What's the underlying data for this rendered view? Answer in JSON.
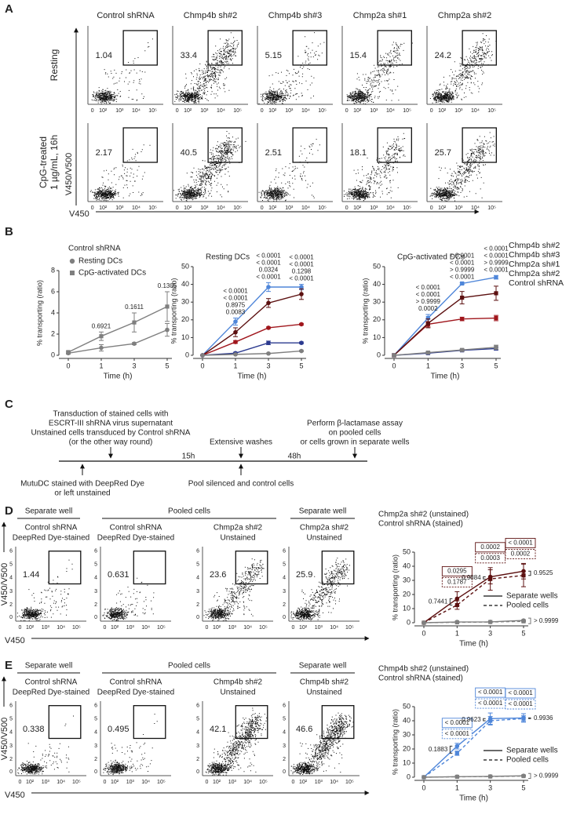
{
  "panel_labels": [
    "A",
    "B",
    "C",
    "D",
    "E"
  ],
  "flow_a": {
    "columns": [
      {
        "name": "Control shRNA",
        "color": "#555555"
      },
      {
        "name": "Chmp4b sh#2",
        "color": "#4f86d9"
      },
      {
        "name": "Chmp4b sh#3",
        "color": "#2b3a8f"
      },
      {
        "name": "Chmp2a sh#1",
        "color": "#a0161c"
      },
      {
        "name": "Chmp2a sh#2",
        "color": "#5c1010"
      }
    ],
    "rows": [
      {
        "label": [
          "Resting"
        ],
        "gates": [
          1.04,
          33.4,
          5.15,
          15.4,
          24.2
        ]
      },
      {
        "label": [
          "CpG-treated",
          "1 µg/mL, 16h"
        ],
        "gates": [
          2.17,
          40.5,
          2.51,
          18.1,
          25.7
        ]
      }
    ],
    "y_label": "V450/V500",
    "x_label": "V450",
    "x_ticks": [
      "0",
      "10²",
      "10³",
      "10⁴",
      "10⁵"
    ]
  },
  "chart_data": [
    {
      "type": "line",
      "legend_title": "Control shRNA",
      "categories": [
        "0",
        "1",
        "3",
        "5"
      ],
      "xlabel": "Time (h)",
      "ylabel": "% transporting (ratio)",
      "ylim": [
        0,
        8
      ],
      "yticks": [
        0,
        2,
        4,
        6,
        8
      ],
      "series": [
        {
          "name": "Resting DCs",
          "color": "#7f7f7f",
          "marker": "circle",
          "values": [
            0.2,
            0.7,
            1.1,
            2.4
          ],
          "errors": [
            0.1,
            0.3,
            0.1,
            0.6
          ]
        },
        {
          "name": "CpG-activated DCs",
          "color": "#7f7f7f",
          "marker": "square",
          "values": [
            0.3,
            1.8,
            3.1,
            4.6
          ],
          "errors": [
            0.1,
            0.4,
            0.9,
            1.4
          ]
        }
      ],
      "p_values": [
        null,
        "0.6921",
        "0.1611",
        "0.1305"
      ],
      "p_color": "#808080"
    },
    {
      "type": "line",
      "title": "Resting DCs",
      "categories": [
        "0",
        "1",
        "3",
        "5"
      ],
      "xlabel": "Time (h)",
      "ylabel": "% transporting (ratio)",
      "ylim": [
        0,
        50
      ],
      "yticks": [
        0,
        10,
        20,
        30,
        40,
        50
      ],
      "series": [
        {
          "color": "#4f86d9",
          "marker": "circle",
          "values": [
            0,
            19,
            38.5,
            38.5
          ],
          "errors": [
            0,
            2,
            2.5,
            1.5
          ]
        },
        {
          "color": "#5c1010",
          "marker": "circle",
          "values": [
            0,
            13,
            29.5,
            34.5
          ],
          "errors": [
            0,
            2.5,
            2.5,
            3
          ]
        },
        {
          "color": "#a0161c",
          "marker": "circle",
          "values": [
            0,
            7.5,
            15.5,
            17.5
          ],
          "errors": [
            0,
            0.8,
            0.5,
            0.5
          ]
        },
        {
          "color": "#2b3a8f",
          "marker": "circle",
          "values": [
            0,
            1.2,
            7,
            7
          ],
          "errors": [
            0,
            0.5,
            1,
            0.5
          ]
        },
        {
          "color": "#7f7f7f",
          "marker": "circle",
          "values": [
            0,
            0.5,
            1,
            2.4
          ],
          "errors": [
            0,
            0.2,
            0.2,
            0.4
          ]
        }
      ],
      "p_values": [
        null,
        [
          {
            "text": "< 0.0001",
            "color": "#4f86d9"
          },
          {
            "text": "< 0.0001",
            "color": "#5c1010"
          },
          {
            "text": "0.8975",
            "color": "#2b3a8f"
          },
          {
            "text": "0.0083",
            "color": "#a0161c"
          }
        ],
        [
          {
            "text": "< 0.0001",
            "color": "#4f86d9"
          },
          {
            "text": "< 0.0001",
            "color": "#5c1010"
          },
          {
            "text": "0.0324",
            "color": "#2b3a8f"
          },
          {
            "text": "< 0.0001",
            "color": "#a0161c"
          }
        ],
        [
          {
            "text": "< 0.0001",
            "color": "#4f86d9"
          },
          {
            "text": "< 0.0001",
            "color": "#5c1010"
          },
          {
            "text": "0.1298",
            "color": "#2b3a8f"
          },
          {
            "text": "< 0.0001",
            "color": "#a0161c"
          }
        ]
      ]
    },
    {
      "type": "line",
      "title": "CpG-activated DCs",
      "categories": [
        "0",
        "1",
        "3",
        "5"
      ],
      "xlabel": "Time (h)",
      "ylabel": "% transporting (ratio)",
      "ylim": [
        0,
        50
      ],
      "yticks": [
        0,
        10,
        20,
        30,
        40,
        50
      ],
      "series": [
        {
          "name": "Chmp4b sh#2",
          "color": "#4f86d9",
          "marker": "square",
          "values": [
            0,
            21,
            40.5,
            44
          ],
          "errors": [
            0,
            2,
            0.5,
            1
          ]
        },
        {
          "name": "Chmp4b sh#3",
          "color": "#2b3a8f",
          "marker": "square",
          "values": [
            0,
            1.2,
            2.8,
            3.8
          ],
          "errors": [
            0,
            0.4,
            0.5,
            0.8
          ]
        },
        {
          "name": "Chmp2a sh#1",
          "color": "#a0161c",
          "marker": "square",
          "values": [
            0,
            17.5,
            20.5,
            21
          ],
          "errors": [
            0,
            1.5,
            1,
            1.5
          ]
        },
        {
          "name": "Chmp2a sh#2",
          "color": "#5c1010",
          "marker": "square",
          "values": [
            0,
            18,
            32.5,
            35
          ],
          "errors": [
            0,
            2.5,
            3.5,
            4
          ]
        },
        {
          "name": "Control shRNA",
          "color": "#7f7f7f",
          "marker": "square",
          "values": [
            0,
            1.5,
            3,
            4.5
          ],
          "errors": [
            0,
            0.5,
            0.5,
            1.2
          ]
        }
      ],
      "p_values": [
        null,
        [
          {
            "text": "< 0.0001",
            "color": "#4f86d9"
          },
          {
            "text": "< 0.0001",
            "color": "#5c1010"
          },
          {
            "text": "> 0.9999",
            "color": "#2b3a8f"
          },
          {
            "text": "0.0002",
            "color": "#a0161c"
          }
        ],
        [
          {
            "text": "< 0.0001",
            "color": "#4f86d9"
          },
          {
            "text": "< 0.0001",
            "color": "#5c1010"
          },
          {
            "text": "> 0.9999",
            "color": "#2b3a8f"
          },
          {
            "text": "< 0.0001",
            "color": "#a0161c"
          }
        ],
        [
          {
            "text": "< 0.0001",
            "color": "#4f86d9"
          },
          {
            "text": "< 0.0001",
            "color": "#5c1010"
          },
          {
            "text": "> 0.9999",
            "color": "#2b3a8f"
          },
          {
            "text": "< 0.0001",
            "color": "#a0161c"
          }
        ]
      ]
    },
    {
      "type": "line",
      "categories": [
        "0",
        "1",
        "3",
        "5"
      ],
      "xlabel": "Time (h)",
      "ylabel": "% transporting (ratio)",
      "ylim": [
        0,
        50
      ],
      "yticks": [
        0,
        10,
        20,
        30,
        40,
        50
      ],
      "groups": [
        {
          "name": "Chmp2a sh#2 (unstained)",
          "color": "#5c1010"
        },
        {
          "name": "Control shRNA (stained)",
          "color": "#7f7f7f"
        }
      ],
      "line_styles": [
        {
          "name": "Separate wells",
          "dash": false
        },
        {
          "name": "Pooled cells",
          "dash": true
        }
      ],
      "series": [
        {
          "color": "#5c1010",
          "marker": "circle",
          "dash": false,
          "values": [
            0,
            17,
            32.5,
            36.5
          ],
          "errors": [
            0,
            5,
            5,
            5.5
          ]
        },
        {
          "color": "#5c1010",
          "marker": "square",
          "dash": true,
          "values": [
            0,
            12.5,
            31,
            33.5
          ],
          "errors": [
            0,
            3,
            8,
            8
          ]
        },
        {
          "color": "#7f7f7f",
          "marker": "circle",
          "dash": false,
          "values": [
            0,
            0.5,
            0.6,
            1.6
          ],
          "errors": [
            0,
            0.2,
            0.3,
            0.5
          ]
        },
        {
          "color": "#7f7f7f",
          "marker": "square",
          "dash": true,
          "values": [
            0,
            0.3,
            0.5,
            1
          ],
          "errors": [
            0,
            0.2,
            0.2,
            0.4
          ]
        }
      ],
      "box_labels": [
        null,
        [
          {
            "text": "0.0295",
            "dash": false
          },
          {
            "text": "0.1787",
            "dash": true
          }
        ],
        [
          {
            "text": "0.0002",
            "dash": false
          },
          {
            "text": "0.0003",
            "dash": true
          }
        ],
        [
          {
            "text": "< 0.0001",
            "dash": false
          },
          {
            "text": "0.0002",
            "dash": true
          }
        ]
      ],
      "bracket_labels": [
        null,
        "0.7441",
        "0.9884",
        "0.9525"
      ],
      "control_bracket_label": "> 0.9999"
    },
    {
      "type": "line",
      "categories": [
        "0",
        "1",
        "3",
        "5"
      ],
      "xlabel": "Time (h)",
      "ylabel": "% transporting (ratio)",
      "ylim": [
        0,
        50
      ],
      "yticks": [
        0,
        10,
        20,
        30,
        40,
        50
      ],
      "groups": [
        {
          "name": "Chmp4b sh#2 (unstained)",
          "color": "#4f86d9"
        },
        {
          "name": "Control shRNA (stained)",
          "color": "#555555"
        }
      ],
      "line_styles": [
        {
          "name": "Separate wells",
          "dash": false
        },
        {
          "name": "Pooled cells",
          "dash": true
        }
      ],
      "series": [
        {
          "color": "#4f86d9",
          "marker": "circle",
          "dash": false,
          "values": [
            0,
            22,
            41.5,
            42
          ],
          "errors": [
            0,
            2,
            4,
            3
          ]
        },
        {
          "color": "#4f86d9",
          "marker": "square",
          "dash": true,
          "values": [
            0,
            17,
            40,
            41.5
          ],
          "errors": [
            0,
            1.5,
            3,
            2
          ]
        },
        {
          "color": "#7f7f7f",
          "marker": "circle",
          "dash": false,
          "values": [
            0,
            0.4,
            0.6,
            1
          ],
          "errors": [
            0,
            0.2,
            0.3,
            0.4
          ]
        },
        {
          "color": "#7f7f7f",
          "marker": "square",
          "dash": true,
          "values": [
            0,
            0.3,
            0.5,
            0.8
          ],
          "errors": [
            0,
            0.2,
            0.2,
            0.3
          ]
        }
      ],
      "box_labels": [
        null,
        [
          {
            "text": "< 0.0001",
            "dash": false
          },
          {
            "text": "< 0.0001",
            "dash": true
          }
        ],
        [
          {
            "text": "< 0.0001",
            "dash": false
          },
          {
            "text": "< 0.0001",
            "dash": true
          }
        ],
        [
          {
            "text": "< 0.0001",
            "dash": false
          },
          {
            "text": "< 0.0001",
            "dash": true
          }
        ]
      ],
      "bracket_labels": [
        null,
        "0.1883",
        "0.9623",
        "0.9936"
      ],
      "control_bracket_label": "> 0.9999"
    }
  ],
  "timeline": {
    "top_notes": [
      [
        "Transduction of stained cells with",
        "ESCRT-III shRNA virus supernatant",
        "Unstained cells transduced by Control shRNA",
        "(or the other way round)"
      ],
      [
        "Extensive washes"
      ],
      [
        "Perform β-lactamase assay",
        "on pooled cells",
        "or cells grown in separate wells"
      ]
    ],
    "durations": [
      "15h",
      "48h"
    ],
    "bottom_notes": [
      [
        "MutuDC stained with DeepRed Dye",
        "or left unstained"
      ],
      [
        "Pool silenced and control cells"
      ]
    ]
  },
  "flow_d": {
    "headers": [
      "Separate well",
      "Pooled cells",
      "Separate well"
    ],
    "columns": [
      {
        "lines": [
          "Control shRNA",
          "DeepRed Dye-stained"
        ],
        "color": "#555555"
      },
      {
        "lines": [
          "Control shRNA",
          "DeepRed Dye-stained"
        ],
        "color": "#555555"
      },
      {
        "lines": [
          "Chmp2a sh#2",
          "Unstained"
        ],
        "color": "#5c1010"
      },
      {
        "lines": [
          "Chmp2a sh#2",
          "Unstained"
        ],
        "color": "#5c1010"
      }
    ],
    "gates": [
      1.44,
      0.631,
      23.6,
      25.9
    ],
    "y_label": "V450/V500",
    "x_label": "V450",
    "x_ticks": [
      "0",
      "10²",
      "10³",
      "10⁴",
      "10⁵"
    ],
    "y_ticks": [
      "0",
      "2",
      "3",
      "4",
      "5",
      "6"
    ]
  },
  "flow_e": {
    "headers": [
      "Separate well",
      "Pooled cells",
      "Separate well"
    ],
    "columns": [
      {
        "lines": [
          "Control shRNA",
          "DeepRed Dye-stained"
        ],
        "color": "#555555"
      },
      {
        "lines": [
          "Control shRNA",
          "DeepRed Dye-stained"
        ],
        "color": "#555555"
      },
      {
        "lines": [
          "Chmp4b sh#2",
          "Unstained"
        ],
        "color": "#4f86d9"
      },
      {
        "lines": [
          "Chmp4b sh#2",
          "Unstained"
        ],
        "color": "#4f86d9"
      }
    ],
    "gates": [
      0.338,
      0.495,
      42.1,
      46.6
    ],
    "y_label": "V450/V500",
    "x_label": "V450",
    "x_ticks": [
      "0",
      "10²",
      "10³",
      "10⁴",
      "10⁵"
    ],
    "y_ticks": [
      "0",
      "2",
      "3",
      "4",
      "5",
      "6"
    ]
  }
}
